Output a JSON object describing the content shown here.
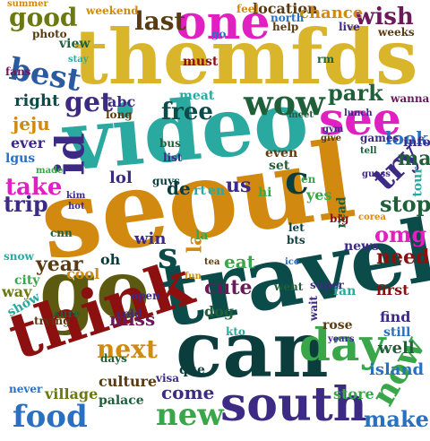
{
  "words": [
    {
      "text": "seoul",
      "color": "#d2890f"
    },
    {
      "text": "travel",
      "color": "#0b4b49"
    },
    {
      "text": "themfds",
      "color": "#d9b52c"
    },
    {
      "text": "video",
      "color": "#2aa9a0"
    },
    {
      "text": "can",
      "color": "#0b3d3d"
    },
    {
      "text": "go",
      "color": "#5b5a10"
    },
    {
      "text": "one",
      "color": "#e020c0"
    },
    {
      "text": "think",
      "color": "#8c1010"
    },
    {
      "text": "south",
      "color": "#3d2a85"
    },
    {
      "text": "day",
      "color": "#3aa64a"
    },
    {
      "text": "see",
      "color": "#e020c0"
    },
    {
      "text": "wow",
      "color": "#1f5f3a"
    },
    {
      "text": "food",
      "color": "#2a70c0"
    },
    {
      "text": "now",
      "color": "#3aa64a"
    },
    {
      "text": "new",
      "color": "#3aa64a"
    },
    {
      "text": "id",
      "color": "#3d2a85"
    },
    {
      "text": "try",
      "color": "#3d2a85"
    },
    {
      "text": "best",
      "color": "#2a5aa0"
    },
    {
      "text": "good",
      "color": "#6a7a10"
    },
    {
      "text": "last",
      "color": "#5a3a10"
    },
    {
      "text": "wish",
      "color": "#6a1a5a"
    },
    {
      "text": "get",
      "color": "#3d2a85"
    },
    {
      "text": "free",
      "color": "#0b4b49"
    },
    {
      "text": "park",
      "color": "#1f5f3a"
    },
    {
      "text": "next",
      "color": "#d2890f"
    },
    {
      "text": "make",
      "color": "#2a70c0"
    },
    {
      "text": "come",
      "color": "#3d2a85"
    },
    {
      "text": "stop",
      "color": "#1f5f3a"
    },
    {
      "text": "omg",
      "color": "#e020c0"
    },
    {
      "text": "year",
      "color": "#5a3a10"
    },
    {
      "text": "take",
      "color": "#e020c0"
    },
    {
      "text": "trip",
      "color": "#3d2a85"
    },
    {
      "text": "need",
      "color": "#8c1010"
    },
    {
      "text": "may",
      "color": "#1f5f3a"
    },
    {
      "text": "cute",
      "color": "#6a1a5a"
    },
    {
      "text": "eat",
      "color": "#3aa64a"
    },
    {
      "text": "look",
      "color": "#2a70c0"
    },
    {
      "text": "location",
      "color": "#5a3a10"
    },
    {
      "text": "chance",
      "color": "#d2890f"
    },
    {
      "text": "miss",
      "color": "#6a1a5a"
    },
    {
      "text": "well",
      "color": "#1f5f3a"
    },
    {
      "text": "island",
      "color": "#2a70c0"
    },
    {
      "text": "culture",
      "color": "#5a3a10"
    },
    {
      "text": "village",
      "color": "#6a7a10"
    },
    {
      "text": "palace",
      "color": "#1f5f3a"
    },
    {
      "text": "store",
      "color": "#3aa64a"
    },
    {
      "text": "jeju",
      "color": "#d2890f"
    },
    {
      "text": "right",
      "color": "#0b4b49"
    },
    {
      "text": "lol",
      "color": "#3d2a85"
    },
    {
      "text": "us",
      "color": "#3d2a85"
    },
    {
      "text": "de",
      "color": "#0b3d3d"
    },
    {
      "text": "c",
      "color": "#0b3d3d"
    },
    {
      "text": "s",
      "color": "#0b4b49"
    },
    {
      "text": "weekend",
      "color": "#d2890f"
    },
    {
      "text": "view",
      "color": "#1f5f3a"
    },
    {
      "text": "photo",
      "color": "#5a3a10"
    },
    {
      "text": "ever",
      "color": "#3d2a85"
    },
    {
      "text": "show",
      "color": "#2aa9a0"
    },
    {
      "text": "city",
      "color": "#3aa64a"
    },
    {
      "text": "way",
      "color": "#6a7a10"
    },
    {
      "text": "oh",
      "color": "#0b3d3d"
    },
    {
      "text": "win",
      "color": "#3d2a85"
    },
    {
      "text": "cool",
      "color": "#d2890f"
    },
    {
      "text": "dog",
      "color": "#1f5f3a"
    },
    {
      "text": "rose",
      "color": "#5a3a10"
    },
    {
      "text": "first",
      "color": "#8c1010"
    },
    {
      "text": "find",
      "color": "#3d2a85"
    },
    {
      "text": "still",
      "color": "#2a70c0"
    },
    {
      "text": "news",
      "color": "#3d2a85"
    },
    {
      "text": "fan",
      "color": "#2aa9a0"
    },
    {
      "text": "tour",
      "color": "#2aa9a0"
    },
    {
      "text": "info",
      "color": "#3d2a85"
    },
    {
      "text": "yes",
      "color": "#3aa64a"
    },
    {
      "text": "summer",
      "color": "#d2890f"
    },
    {
      "text": "feel",
      "color": "#d2890f"
    },
    {
      "text": "help",
      "color": "#5a3a10"
    },
    {
      "text": "live",
      "color": "#3d2a85"
    },
    {
      "text": "north",
      "color": "#2a70c0"
    },
    {
      "text": "fans",
      "color": "#6a1a5a"
    },
    {
      "text": "abc",
      "color": "#3d2a85"
    },
    {
      "text": "meat",
      "color": "#2aa9a0"
    },
    {
      "text": "even",
      "color": "#5a3a10"
    },
    {
      "text": "set",
      "color": "#1f5f3a"
    },
    {
      "text": "hi",
      "color": "#3aa64a"
    },
    {
      "text": "en",
      "color": "#2aa9a0"
    },
    {
      "text": "rt",
      "color": "#2aa9a0"
    },
    {
      "text": "la",
      "color": "#d2890f"
    },
    {
      "text": "open",
      "color": "#3d2a85"
    },
    {
      "text": "super",
      "color": "#3d2a85"
    },
    {
      "text": "went",
      "color": "#1f5f3a"
    },
    {
      "text": "wait",
      "color": "#3d2a85"
    },
    {
      "text": "que",
      "color": "#0b3d3d"
    },
    {
      "text": "visa",
      "color": "#3d2a85"
    },
    {
      "text": "never",
      "color": "#2a70c0"
    },
    {
      "text": "trying",
      "color": "#5a3a10"
    },
    {
      "text": "sure",
      "color": "#1f5f3a"
    },
    {
      "text": "cold",
      "color": "#3d2a85"
    },
    {
      "text": "kto",
      "color": "#2aa9a0"
    },
    {
      "text": "bts",
      "color": "#0b3d3d"
    },
    {
      "text": "let",
      "color": "#0b3d3d"
    },
    {
      "text": "snow",
      "color": "#2aa9a0"
    },
    {
      "text": "lgus",
      "color": "#2a70c0"
    },
    {
      "text": "made",
      "color": "#3aa64a"
    },
    {
      "text": "games",
      "color": "#3d2a85"
    },
    {
      "text": "guess",
      "color": "#3d2a85"
    },
    {
      "text": "weeks",
      "color": "#5a3a10"
    },
    {
      "text": "must",
      "color": "#8c1010"
    },
    {
      "text": "tell",
      "color": "#1f5f3a"
    },
    {
      "text": "go",
      "color": "#2a70c0"
    },
    {
      "text": "long",
      "color": "#5a3a10"
    },
    {
      "text": "wanna",
      "color": "#6a1a5a"
    },
    {
      "text": "read",
      "color": "#1f5f3a"
    },
    {
      "text": "big",
      "color": "#8c1010"
    },
    {
      "text": "corea",
      "color": "#d2890f"
    },
    {
      "text": "stay",
      "color": "#2aa9a0"
    },
    {
      "text": "years",
      "color": "#3d2a85"
    },
    {
      "text": "days",
      "color": "#1f5f3a"
    },
    {
      "text": "cnn",
      "color": "#1f5f3a"
    },
    {
      "text": "en",
      "color": "#3aa64a"
    },
    {
      "text": "fun",
      "color": "#d2890f"
    },
    {
      "text": "ice",
      "color": "#2a70c0"
    },
    {
      "text": "tea",
      "color": "#5a3a10"
    },
    {
      "text": "guys",
      "color": "#0b3d3d"
    },
    {
      "text": "meet",
      "color": "#1f5f3a"
    },
    {
      "text": "lunch",
      "color": "#3d2a85"
    },
    {
      "text": "give",
      "color": "#5a3a10"
    },
    {
      "text": "gym",
      "color": "#3d2a85"
    },
    {
      "text": "bus",
      "color": "#1f5f3a"
    },
    {
      "text": "list",
      "color": "#3d2a85"
    },
    {
      "text": "kim",
      "color": "#3d2a85"
    },
    {
      "text": "hot",
      "color": "#3d2a85"
    },
    {
      "text": "rm",
      "color": "#1f5f3a"
    },
    {
      "text": "la",
      "color": "#3aa64a"
    }
  ]
}
